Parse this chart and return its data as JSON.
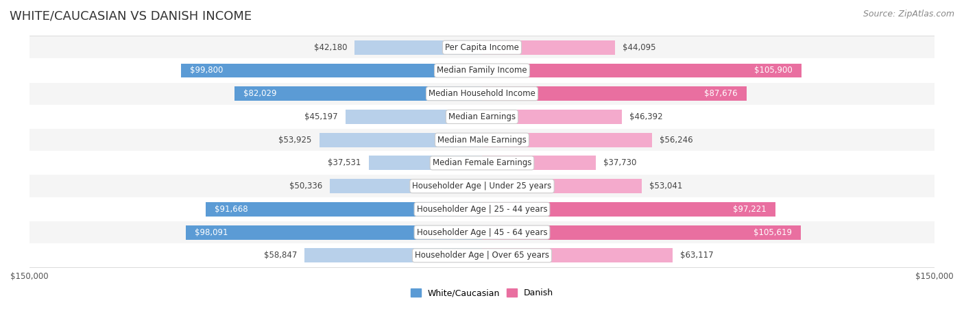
{
  "title": "WHITE/CAUCASIAN VS DANISH INCOME",
  "source": "Source: ZipAtlas.com",
  "categories": [
    "Per Capita Income",
    "Median Family Income",
    "Median Household Income",
    "Median Earnings",
    "Median Male Earnings",
    "Median Female Earnings",
    "Householder Age | Under 25 years",
    "Householder Age | 25 - 44 years",
    "Householder Age | 45 - 64 years",
    "Householder Age | Over 65 years"
  ],
  "white_values": [
    42180,
    99800,
    82029,
    45197,
    53925,
    37531,
    50336,
    91668,
    98091,
    58847
  ],
  "danish_values": [
    44095,
    105900,
    87676,
    46392,
    56246,
    37730,
    53041,
    97221,
    105619,
    63117
  ],
  "white_labels": [
    "$42,180",
    "$99,800",
    "$82,029",
    "$45,197",
    "$53,925",
    "$37,531",
    "$50,336",
    "$91,668",
    "$98,091",
    "$58,847"
  ],
  "danish_labels": [
    "$44,095",
    "$105,900",
    "$87,676",
    "$46,392",
    "$56,246",
    "$37,730",
    "$53,041",
    "$97,221",
    "$105,619",
    "$63,117"
  ],
  "white_color_light": "#b8d0ea",
  "white_color_dark": "#5b9bd5",
  "danish_color_light": "#f4aacc",
  "danish_color_dark": "#e96fa0",
  "axis_limit": 150000,
  "background_color": "#ffffff",
  "row_bg_even": "#f5f5f5",
  "row_bg_odd": "#ffffff",
  "label_box_color": "#ffffff",
  "title_fontsize": 13,
  "source_fontsize": 9,
  "bar_fontsize": 8.5,
  "category_fontsize": 8.5,
  "legend_fontsize": 9,
  "axis_fontsize": 8.5,
  "white_dark_threshold": 70000,
  "danish_dark_threshold": 70000
}
